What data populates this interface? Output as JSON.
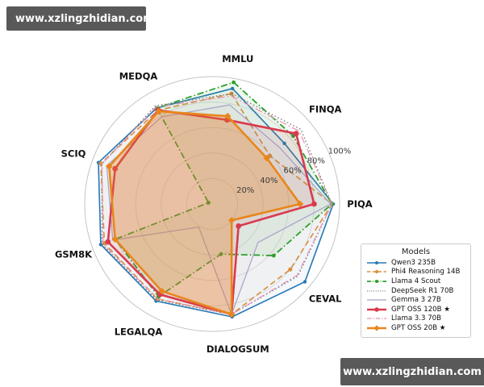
{
  "watermark_top": "www.xzlingzhidian.com",
  "watermark_bottom": "www.xzlingzhidian.com",
  "legend": {
    "title": "Models"
  },
  "chart_data": {
    "type": "radar",
    "title": "",
    "categories": [
      "MMLU",
      "FINQA",
      "PIQA",
      "CEVAL",
      "DIALOGSUM",
      "LEGALQA",
      "GSM8K",
      "SCIQ",
      "MEDQA"
    ],
    "axis_angles_deg": [
      80,
      40,
      0,
      -40,
      -80,
      -120,
      -160,
      160,
      120
    ],
    "radial_ticks": [
      "20%",
      "40%",
      "60%",
      "80%",
      "100%"
    ],
    "radial_tick_values": [
      20,
      40,
      60,
      80,
      100
    ],
    "rlim": [
      0,
      100
    ],
    "rlabel_angle_deg": 22.5,
    "grid": "on",
    "legend_position": "lower right",
    "series": [
      {
        "name": "Qwen3 235B",
        "color": "#2878b5",
        "dash": "",
        "width": 1.6,
        "marker": "circle",
        "marker_size": 2.2,
        "fill_opacity": 0.05,
        "values": [
          92,
          74,
          95,
          95,
          90,
          88,
          93,
          95,
          87
        ]
      },
      {
        "name": "Phi4 Reasoning 14B",
        "color": "#de8f3e",
        "dash": "7,4",
        "width": 1.6,
        "marker": "arrow",
        "marker_size": 2.6,
        "fill_opacity": 0.03,
        "values": [
          88,
          59,
          94,
          80,
          88,
          86,
          90,
          93,
          85
        ]
      },
      {
        "name": "Llama 4 Scout",
        "color": "#2ca02c",
        "dash": "8,3,1.5,3",
        "width": 1.8,
        "marker": "circle",
        "marker_size": 2.4,
        "fill_opacity": 0.08,
        "values": [
          97,
          83,
          94,
          63,
          40,
          84,
          81,
          3,
          87
        ]
      },
      {
        "name": "DeepSeek R1 70B",
        "color": "#777777",
        "dash": "1.5,2.8",
        "width": 1.3,
        "marker": "none",
        "marker_size": 0,
        "fill_opacity": 0.02,
        "values": [
          88,
          91,
          94,
          88,
          88,
          87,
          92,
          92,
          89
        ]
      },
      {
        "name": "Gemma 3 27B",
        "color": "#a6a1c8",
        "dash": "",
        "width": 1.2,
        "marker": "none",
        "marker_size": 0,
        "fill_opacity": 0.04,
        "values": [
          79,
          69,
          93,
          47,
          88,
          21,
          83,
          88,
          79
        ]
      },
      {
        "name": "GPT OSS 120B ★",
        "color": "#d93a4e",
        "dash": "",
        "width": 2.6,
        "marker": "circle",
        "marker_size": 3.4,
        "fill_opacity": 0.1,
        "values": [
          67,
          86,
          80,
          27,
          88,
          82,
          87,
          81,
          85
        ]
      },
      {
        "name": "Llama 3.3 70B",
        "color": "#e895b2",
        "dash": "9,3,2,3",
        "width": 1.2,
        "marker": "none",
        "marker_size": 0,
        "fill_opacity": 0.0,
        "values": [
          86,
          89,
          94,
          87,
          88,
          86,
          91,
          92,
          88
        ]
      },
      {
        "name": "GPT OSS 20B ★",
        "color": "#e8861c",
        "dash": "",
        "width": 2.6,
        "marker": "diamond",
        "marker_size": 4.2,
        "fill_opacity": 0.3,
        "values": [
          70,
          56,
          69,
          20,
          88,
          79,
          81,
          86,
          84
        ]
      }
    ]
  }
}
